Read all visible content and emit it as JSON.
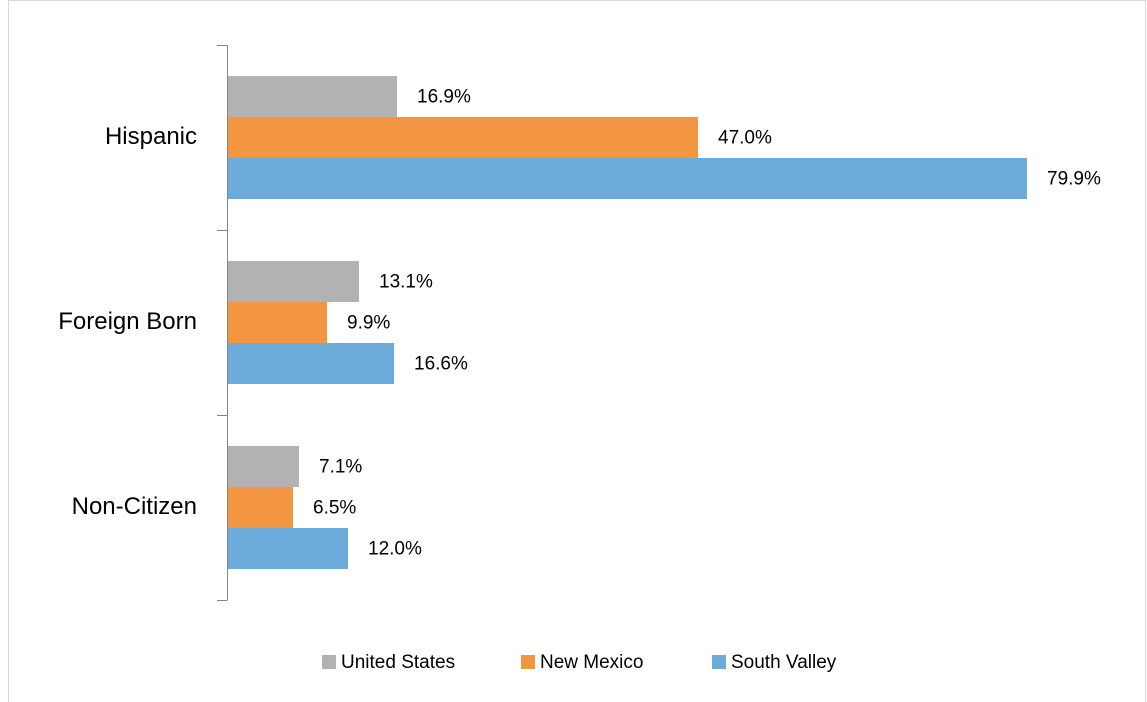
{
  "chart_data": {
    "type": "bar",
    "orientation": "horizontal",
    "categories": [
      "Hispanic",
      "Foreign Born",
      "Non-Citizen"
    ],
    "series": [
      {
        "name": "United States",
        "color": "#b2b2b2",
        "values": [
          16.9,
          13.1,
          7.1
        ],
        "value_labels": [
          "16.9%",
          "13.1%",
          "7.1%"
        ]
      },
      {
        "name": "New Mexico",
        "color": "#f39641",
        "values": [
          47.0,
          9.9,
          6.5
        ],
        "value_labels": [
          "47.0%",
          "9.9%",
          "6.5%"
        ]
      },
      {
        "name": "South Valley",
        "color": "#6aabd9",
        "values": [
          79.9,
          16.6,
          12.0
        ],
        "value_labels": [
          "79.9%",
          "16.6%",
          "12.0%"
        ]
      }
    ],
    "xlim": [
      0,
      80
    ],
    "legend": "bottom"
  }
}
